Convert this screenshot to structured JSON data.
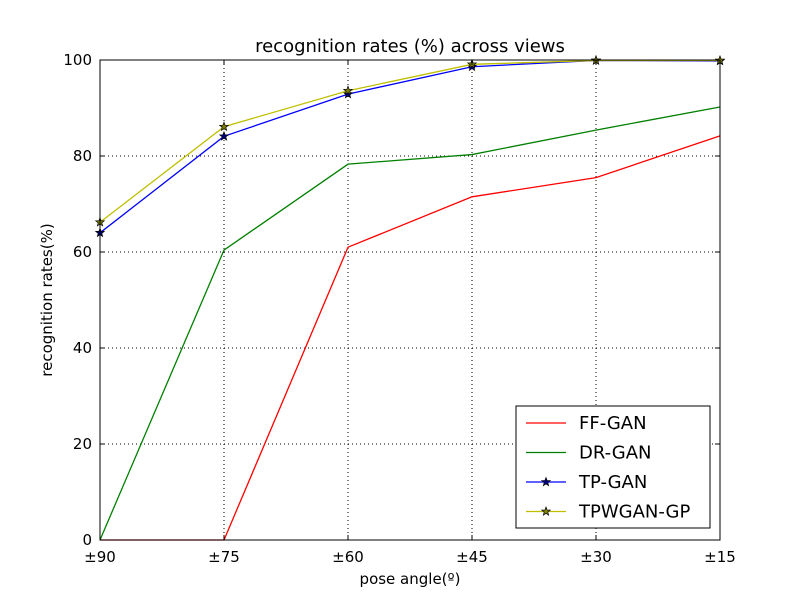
{
  "chart_data": {
    "type": "line",
    "title": "recognition rates (%) across views",
    "xlabel": "pose angle(º)",
    "ylabel": "recognition rates(%)",
    "categories": [
      "±90",
      "±75",
      "±60",
      "±45",
      "±30",
      "±15"
    ],
    "ylim": [
      0,
      100
    ],
    "yticks": [
      0,
      20,
      40,
      60,
      80,
      100
    ],
    "grid": true,
    "legend_position": "lower-right",
    "series": [
      {
        "name": "FF-GAN",
        "color": "#ff0000",
        "marker": "none",
        "values": [
          0,
          0,
          61,
          71.5,
          75.5,
          84.2
        ]
      },
      {
        "name": "DR-GAN",
        "color": "#008000",
        "marker": "none",
        "values": [
          0,
          60.4,
          78.3,
          80.3,
          85.4,
          90.2
        ]
      },
      {
        "name": "TP-GAN",
        "color": "#0000ff",
        "marker": "star",
        "marker_fill": "#000080",
        "values": [
          64.0,
          84.1,
          92.9,
          98.6,
          99.9,
          99.8
        ]
      },
      {
        "name": "TPWGAN-GP",
        "color": "#bfbf00",
        "marker": "star",
        "marker_fill": "#808000",
        "values": [
          66.2,
          86.1,
          93.6,
          99.1,
          99.9,
          99.9
        ]
      }
    ]
  }
}
